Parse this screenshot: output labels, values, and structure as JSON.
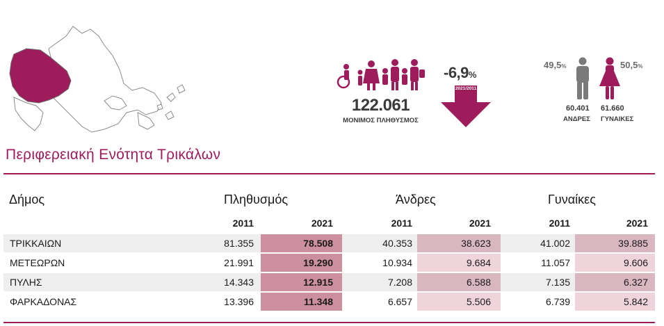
{
  "summary": {
    "population_value": "122.061",
    "population_label": "ΜΟΝΙΜΟΣ ΠΛΗΘΥΣΜΟΣ",
    "change_value": "-6,9",
    "change_unit": "%",
    "change_period": "2021/2011",
    "men_pct": "49,5",
    "women_pct": "50,5",
    "pct_unit": "%",
    "men_count": "60.401",
    "women_count": "61.660",
    "men_label": "ΑΝΔΡΕΣ",
    "women_label": "ΓΥΝΑΙΚΕΣ"
  },
  "region_title": "Περιφερειακή Ενότητα Τρικάλων",
  "table": {
    "headers": {
      "municipality": "Δήμος",
      "population": "Πληθυσμός",
      "men": "Άνδρες",
      "women": "Γυναίκες"
    },
    "years": [
      "2011",
      "2021"
    ],
    "rows": [
      {
        "name": "ΤΡΙΚΚΑΙΩΝ",
        "pop_2011": "81.355",
        "pop_2021": "78.508",
        "men_2011": "40.353",
        "men_2021": "38.623",
        "women_2011": "41.002",
        "women_2021": "39.885"
      },
      {
        "name": "ΜΕΤΕΩΡΩΝ",
        "pop_2011": "21.991",
        "pop_2021": "19.290",
        "men_2011": "10.934",
        "men_2021": "9.684",
        "women_2011": "11.057",
        "women_2021": "9.606"
      },
      {
        "name": "ΠΥΛΗΣ",
        "pop_2011": "14.343",
        "pop_2021": "12.915",
        "men_2011": "7.208",
        "men_2021": "6.588",
        "women_2011": "7.135",
        "women_2021": "6.327"
      },
      {
        "name": "ΦΑΡΚΑΔΟΝΑΣ",
        "pop_2011": "13.396",
        "pop_2021": "11.348",
        "men_2011": "6.657",
        "men_2021": "5.506",
        "women_2011": "6.739",
        "women_2021": "5.842"
      }
    ]
  },
  "colors": {
    "accent": "#9e1b5c",
    "pop_2021_band": "#cc8fa0",
    "gender_2021_band_dark": "#d9b7c1",
    "gender_2021_band_light": "#efd4dc",
    "row_shade": "#eeeeee",
    "map_region": "#9e1b5c",
    "icon_grey": "#7a7a7a"
  },
  "icons": {
    "map": "region-map-icon",
    "family": "family-icon",
    "arrow": "down-arrow-icon",
    "man": "man-icon",
    "woman": "woman-icon"
  }
}
